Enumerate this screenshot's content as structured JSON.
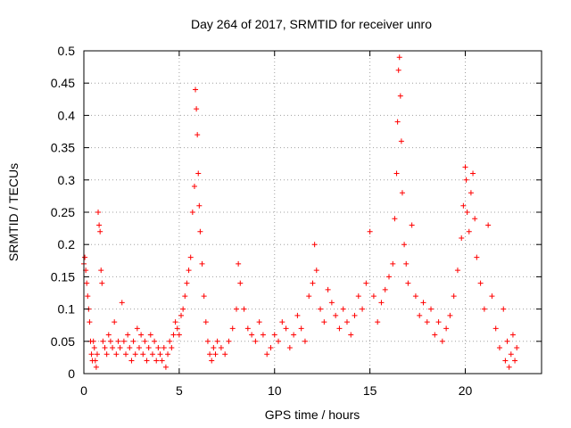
{
  "chart_data": {
    "type": "scatter",
    "title": "Day 264 of 2017, SRMTID for receiver unro",
    "xlabel": "GPS time / hours",
    "ylabel": "SRMTID / TECUs",
    "xlim": [
      0,
      24
    ],
    "ylim": [
      0,
      0.5
    ],
    "xticks": [
      0,
      5,
      10,
      15,
      20
    ],
    "xtick_labels": [
      "0",
      "5",
      "10",
      "15",
      "20"
    ],
    "yticks": [
      0,
      0.05,
      0.1,
      0.15,
      0.2,
      0.25,
      0.3,
      0.35,
      0.4,
      0.45,
      0.5
    ],
    "ytick_labels": [
      "0",
      "0.05",
      "0.1",
      "0.15",
      "0.2",
      "0.25",
      "0.3",
      "0.35",
      "0.4",
      "0.45",
      "0.5"
    ],
    "grid": true,
    "marker": "+",
    "color": "#ff0000",
    "series": [
      {
        "name": "SRMTID",
        "points": [
          [
            0.0,
            0.17
          ],
          [
            0.05,
            0.18
          ],
          [
            0.1,
            0.16
          ],
          [
            0.15,
            0.14
          ],
          [
            0.2,
            0.12
          ],
          [
            0.25,
            0.1
          ],
          [
            0.3,
            0.08
          ],
          [
            0.35,
            0.05
          ],
          [
            0.4,
            0.03
          ],
          [
            0.45,
            0.02
          ],
          [
            0.5,
            0.05
          ],
          [
            0.55,
            0.04
          ],
          [
            0.6,
            0.02
          ],
          [
            0.65,
            0.01
          ],
          [
            0.7,
            0.03
          ],
          [
            0.75,
            0.25
          ],
          [
            0.8,
            0.23
          ],
          [
            0.85,
            0.22
          ],
          [
            0.9,
            0.16
          ],
          [
            0.95,
            0.14
          ],
          [
            1.0,
            0.05
          ],
          [
            1.1,
            0.04
          ],
          [
            1.2,
            0.03
          ],
          [
            1.3,
            0.06
          ],
          [
            1.4,
            0.05
          ],
          [
            1.5,
            0.04
          ],
          [
            1.6,
            0.08
          ],
          [
            1.7,
            0.03
          ],
          [
            1.8,
            0.05
          ],
          [
            1.9,
            0.04
          ],
          [
            2.0,
            0.11
          ],
          [
            2.1,
            0.05
          ],
          [
            2.2,
            0.03
          ],
          [
            2.3,
            0.06
          ],
          [
            2.4,
            0.04
          ],
          [
            2.5,
            0.02
          ],
          [
            2.6,
            0.05
          ],
          [
            2.7,
            0.03
          ],
          [
            2.8,
            0.07
          ],
          [
            2.9,
            0.04
          ],
          [
            3.0,
            0.06
          ],
          [
            3.1,
            0.03
          ],
          [
            3.2,
            0.05
          ],
          [
            3.3,
            0.02
          ],
          [
            3.4,
            0.04
          ],
          [
            3.5,
            0.06
          ],
          [
            3.6,
            0.03
          ],
          [
            3.7,
            0.05
          ],
          [
            3.8,
            0.02
          ],
          [
            3.9,
            0.04
          ],
          [
            4.0,
            0.03
          ],
          [
            4.1,
            0.02
          ],
          [
            4.2,
            0.04
          ],
          [
            4.3,
            0.01
          ],
          [
            4.4,
            0.03
          ],
          [
            4.5,
            0.05
          ],
          [
            4.6,
            0.04
          ],
          [
            4.7,
            0.06
          ],
          [
            4.8,
            0.08
          ],
          [
            4.9,
            0.07
          ],
          [
            5.0,
            0.06
          ],
          [
            5.1,
            0.09
          ],
          [
            5.2,
            0.1
          ],
          [
            5.3,
            0.12
          ],
          [
            5.4,
            0.14
          ],
          [
            5.5,
            0.16
          ],
          [
            5.6,
            0.18
          ],
          [
            5.7,
            0.25
          ],
          [
            5.8,
            0.29
          ],
          [
            5.85,
            0.44
          ],
          [
            5.9,
            0.41
          ],
          [
            5.95,
            0.37
          ],
          [
            6.0,
            0.31
          ],
          [
            6.05,
            0.26
          ],
          [
            6.1,
            0.22
          ],
          [
            6.2,
            0.17
          ],
          [
            6.3,
            0.12
          ],
          [
            6.4,
            0.08
          ],
          [
            6.5,
            0.05
          ],
          [
            6.6,
            0.03
          ],
          [
            6.7,
            0.02
          ],
          [
            6.8,
            0.04
          ],
          [
            6.9,
            0.03
          ],
          [
            7.0,
            0.05
          ],
          [
            7.2,
            0.04
          ],
          [
            7.4,
            0.03
          ],
          [
            7.6,
            0.05
          ],
          [
            7.8,
            0.07
          ],
          [
            8.0,
            0.1
          ],
          [
            8.1,
            0.17
          ],
          [
            8.2,
            0.14
          ],
          [
            8.4,
            0.1
          ],
          [
            8.6,
            0.07
          ],
          [
            8.8,
            0.06
          ],
          [
            9.0,
            0.05
          ],
          [
            9.2,
            0.08
          ],
          [
            9.4,
            0.06
          ],
          [
            9.6,
            0.03
          ],
          [
            9.8,
            0.04
          ],
          [
            10.0,
            0.06
          ],
          [
            10.2,
            0.05
          ],
          [
            10.4,
            0.08
          ],
          [
            10.6,
            0.07
          ],
          [
            10.8,
            0.04
          ],
          [
            11.0,
            0.06
          ],
          [
            11.2,
            0.09
          ],
          [
            11.4,
            0.07
          ],
          [
            11.6,
            0.05
          ],
          [
            11.8,
            0.12
          ],
          [
            12.0,
            0.14
          ],
          [
            12.1,
            0.2
          ],
          [
            12.2,
            0.16
          ],
          [
            12.4,
            0.1
          ],
          [
            12.6,
            0.08
          ],
          [
            12.8,
            0.13
          ],
          [
            13.0,
            0.11
          ],
          [
            13.2,
            0.09
          ],
          [
            13.4,
            0.07
          ],
          [
            13.6,
            0.1
          ],
          [
            13.8,
            0.08
          ],
          [
            14.0,
            0.06
          ],
          [
            14.2,
            0.09
          ],
          [
            14.4,
            0.12
          ],
          [
            14.6,
            0.1
          ],
          [
            14.8,
            0.14
          ],
          [
            15.0,
            0.22
          ],
          [
            15.2,
            0.12
          ],
          [
            15.4,
            0.08
          ],
          [
            15.6,
            0.11
          ],
          [
            15.8,
            0.13
          ],
          [
            16.0,
            0.15
          ],
          [
            16.2,
            0.17
          ],
          [
            16.3,
            0.24
          ],
          [
            16.4,
            0.31
          ],
          [
            16.45,
            0.39
          ],
          [
            16.5,
            0.47
          ],
          [
            16.55,
            0.49
          ],
          [
            16.6,
            0.43
          ],
          [
            16.65,
            0.36
          ],
          [
            16.7,
            0.28
          ],
          [
            16.8,
            0.2
          ],
          [
            16.9,
            0.17
          ],
          [
            17.0,
            0.14
          ],
          [
            17.2,
            0.23
          ],
          [
            17.4,
            0.12
          ],
          [
            17.6,
            0.09
          ],
          [
            17.8,
            0.11
          ],
          [
            18.0,
            0.08
          ],
          [
            18.2,
            0.1
          ],
          [
            18.4,
            0.06
          ],
          [
            18.6,
            0.08
          ],
          [
            18.8,
            0.05
          ],
          [
            19.0,
            0.07
          ],
          [
            19.2,
            0.09
          ],
          [
            19.4,
            0.12
          ],
          [
            19.6,
            0.16
          ],
          [
            19.8,
            0.21
          ],
          [
            19.9,
            0.26
          ],
          [
            20.0,
            0.32
          ],
          [
            20.05,
            0.3
          ],
          [
            20.1,
            0.25
          ],
          [
            20.2,
            0.22
          ],
          [
            20.3,
            0.28
          ],
          [
            20.4,
            0.31
          ],
          [
            20.5,
            0.24
          ],
          [
            20.6,
            0.18
          ],
          [
            20.8,
            0.14
          ],
          [
            21.0,
            0.1
          ],
          [
            21.2,
            0.23
          ],
          [
            21.4,
            0.12
          ],
          [
            21.6,
            0.07
          ],
          [
            21.8,
            0.04
          ],
          [
            22.0,
            0.1
          ],
          [
            22.1,
            0.02
          ],
          [
            22.2,
            0.05
          ],
          [
            22.3,
            0.01
          ],
          [
            22.4,
            0.03
          ],
          [
            22.5,
            0.06
          ],
          [
            22.6,
            0.02
          ],
          [
            22.7,
            0.04
          ]
        ]
      }
    ]
  }
}
